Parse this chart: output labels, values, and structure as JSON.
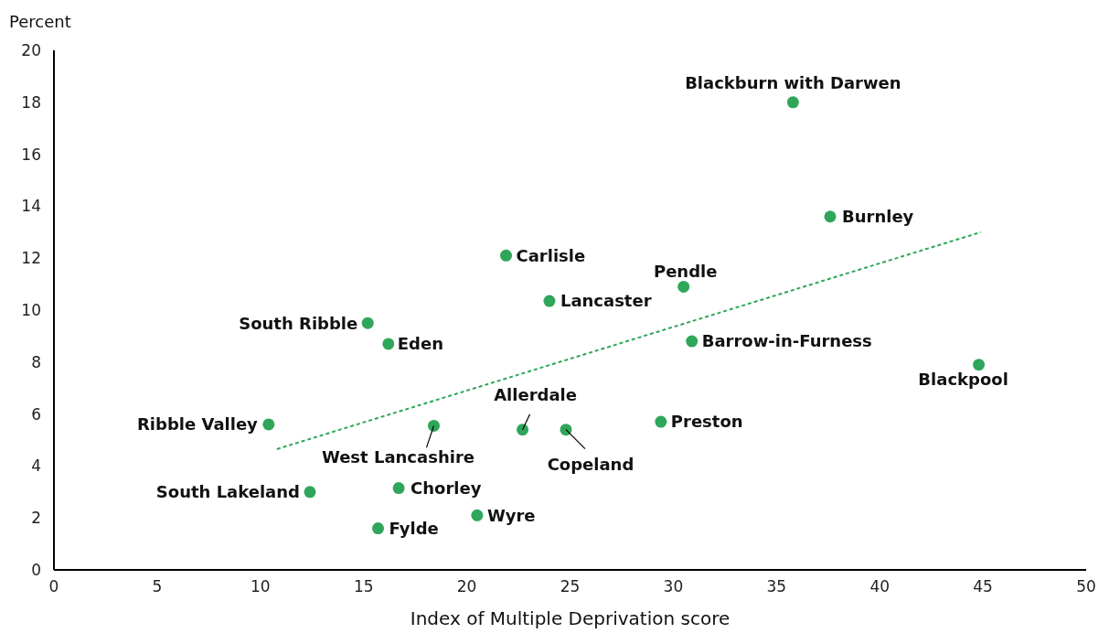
{
  "chart_data": {
    "type": "scatter",
    "xlabel": "Index of Multiple Deprivation score",
    "ylabel": "Percent",
    "xlim": [
      0,
      50
    ],
    "xticks": [
      0,
      5,
      10,
      15,
      20,
      25,
      30,
      35,
      40,
      45,
      50
    ],
    "ylim": [
      0,
      20
    ],
    "yticks": [
      0,
      2,
      4,
      6,
      8,
      10,
      12,
      14,
      16,
      18,
      20
    ],
    "grid": false,
    "series": [
      {
        "color": "#2fa65a",
        "marker": "circle",
        "x": [
          35.8,
          37.6,
          21.9,
          30.5,
          24.0,
          15.2,
          16.2,
          30.9,
          44.8,
          10.4,
          18.4,
          22.7,
          24.8,
          29.4,
          12.4,
          16.7,
          20.5,
          15.7
        ],
        "values": [
          18.0,
          13.6,
          12.1,
          10.9,
          10.35,
          9.5,
          8.7,
          8.8,
          7.9,
          5.6,
          5.55,
          5.4,
          5.4,
          5.7,
          3.0,
          3.15,
          2.1,
          1.6
        ]
      },
      {
        "type": "line",
        "color": "#2fa65a",
        "marker": "none",
        "line_style": "dashed",
        "x": [
          10.8,
          44.9
        ],
        "values": [
          4.65,
          13.0
        ]
      }
    ],
    "annotations": [
      {
        "text": "Blackburn with Darwen",
        "x": 35.8,
        "y": 18.0
      },
      {
        "text": "Burnley",
        "x": 37.6,
        "y": 13.6
      },
      {
        "text": "Carlisle",
        "x": 21.9,
        "y": 12.1
      },
      {
        "text": "Pendle",
        "x": 30.5,
        "y": 10.9
      },
      {
        "text": "Lancaster",
        "x": 24.0,
        "y": 10.35
      },
      {
        "text": "South Ribble",
        "x": 15.2,
        "y": 9.5
      },
      {
        "text": "Eden",
        "x": 16.2,
        "y": 8.7
      },
      {
        "text": "Barrow-in-Furness",
        "x": 30.9,
        "y": 8.8
      },
      {
        "text": "Blackpool",
        "x": 44.8,
        "y": 7.9
      },
      {
        "text": "Ribble Valley",
        "x": 10.4,
        "y": 5.6
      },
      {
        "text": "West Lancashire",
        "x": 18.4,
        "y": 5.55
      },
      {
        "text": "Allerdale",
        "x": 22.7,
        "y": 5.4
      },
      {
        "text": "Copeland",
        "x": 24.8,
        "y": 5.4
      },
      {
        "text": "Preston",
        "x": 29.4,
        "y": 5.7
      },
      {
        "text": "South Lakeland",
        "x": 12.4,
        "y": 3.0
      },
      {
        "text": "Chorley",
        "x": 16.7,
        "y": 3.15
      },
      {
        "text": "Wyre",
        "x": 20.5,
        "y": 2.1
      },
      {
        "text": "Fylde",
        "x": 15.7,
        "y": 1.6
      }
    ]
  }
}
